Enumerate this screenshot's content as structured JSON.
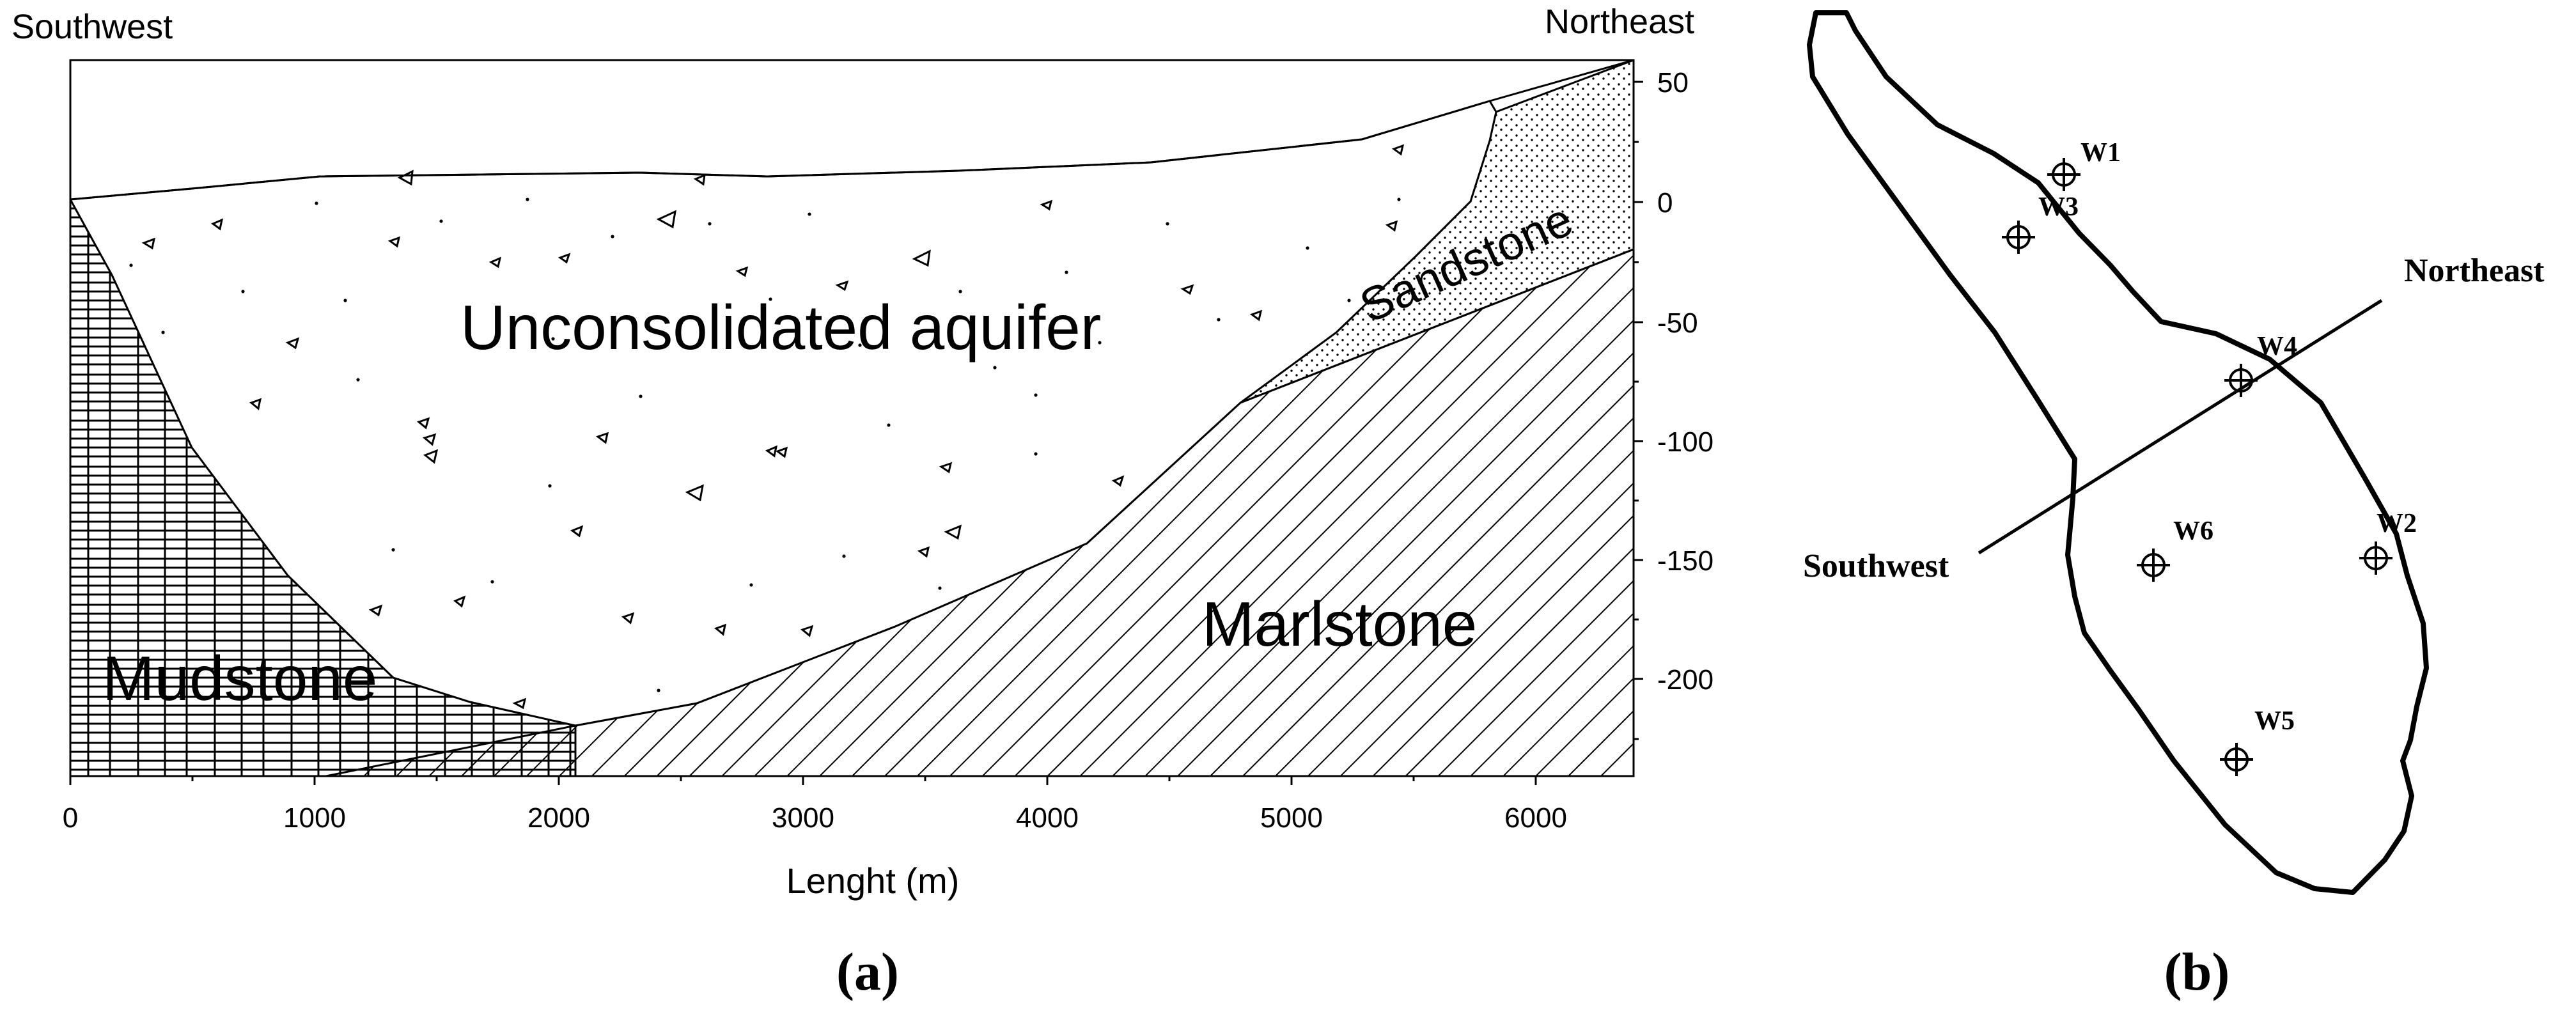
{
  "panel_a": {
    "left_label": "Southwest",
    "right_label": "Northeast",
    "xlabel": "Lenght (m)",
    "x_ticks": [
      "0",
      "1000",
      "2000",
      "3000",
      "4000",
      "5000",
      "6000"
    ],
    "y_ticks": [
      "50",
      "0",
      "-50",
      "-100",
      "-150",
      "-200"
    ],
    "layers": {
      "aquifer": "Unconsolidated aquifer",
      "mudstone": "Mudstone",
      "marlstone": "Marlstone",
      "sandstone": "Sandstone"
    },
    "panel_label": "(a)"
  },
  "panel_b": {
    "wells": [
      "W1",
      "W3",
      "W4",
      "W6",
      "W2",
      "W5"
    ],
    "southwest": "Southwest",
    "northeast": "Northeast",
    "panel_label": "(b)"
  }
}
